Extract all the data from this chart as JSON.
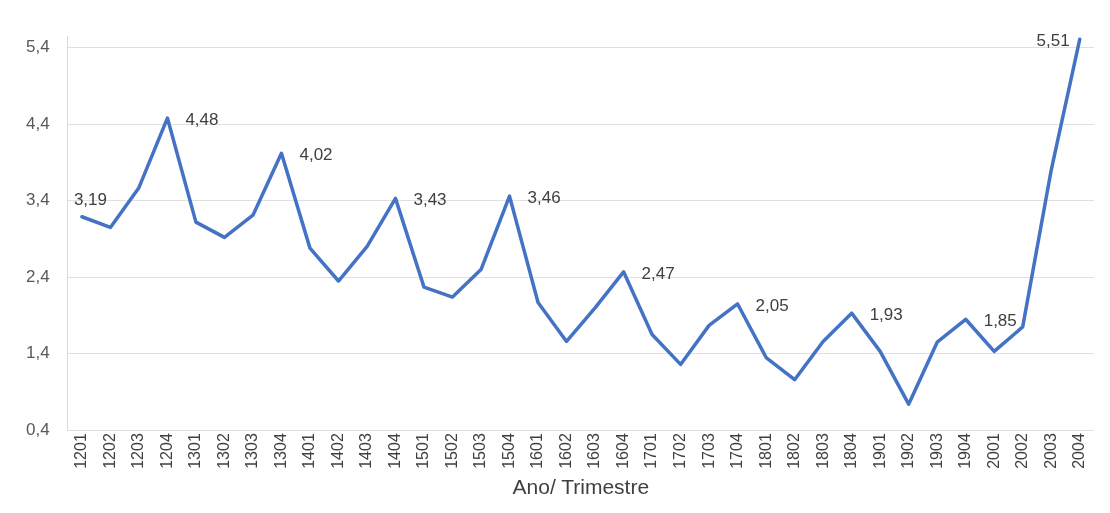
{
  "chart_data": {
    "type": "line",
    "xlabel": "Ano/ Trimestre",
    "categories": [
      "1201",
      "1202",
      "1203",
      "1204",
      "1301",
      "1302",
      "1303",
      "1304",
      "1401",
      "1402",
      "1403",
      "1404",
      "1501",
      "1502",
      "1503",
      "1504",
      "1601",
      "1602",
      "1603",
      "1604",
      "1701",
      "1702",
      "1703",
      "1704",
      "1801",
      "1802",
      "1803",
      "1804",
      "1901",
      "1902",
      "1903",
      "1904",
      "2001",
      "2002",
      "2003",
      "2004"
    ],
    "series": [
      {
        "color": "#4472c4",
        "values": [
          3.19,
          3.05,
          3.57,
          4.48,
          3.12,
          2.92,
          3.21,
          4.02,
          2.78,
          2.35,
          2.8,
          3.43,
          2.27,
          2.14,
          2.5,
          3.46,
          2.07,
          1.56,
          2.0,
          2.47,
          1.65,
          1.26,
          1.77,
          2.05,
          1.35,
          1.06,
          1.56,
          1.93,
          1.43,
          0.74,
          1.55,
          1.85,
          1.43,
          1.75,
          3.8,
          5.51
        ],
        "value_labels": [
          "3,19",
          null,
          null,
          "4,48",
          null,
          null,
          null,
          "4,02",
          null,
          null,
          null,
          "3,43",
          null,
          null,
          null,
          "3,46",
          null,
          null,
          null,
          "2,47",
          null,
          null,
          null,
          "2,05",
          null,
          null,
          null,
          "1,93",
          null,
          null,
          null,
          "1,85",
          null,
          null,
          null,
          "5,51"
        ]
      }
    ],
    "ylim": [
      0.4,
      5.55
    ],
    "yticks": [
      {
        "value": 0.4,
        "label": "0,4"
      },
      {
        "value": 1.4,
        "label": "1,4"
      },
      {
        "value": 2.4,
        "label": "2,4"
      },
      {
        "value": 3.4,
        "label": "3,4"
      },
      {
        "value": 4.4,
        "label": "4,4"
      },
      {
        "value": 5.4,
        "label": "5,4"
      }
    ],
    "grid": "y",
    "legend": false,
    "marker": "none",
    "line_style": "solid"
  }
}
